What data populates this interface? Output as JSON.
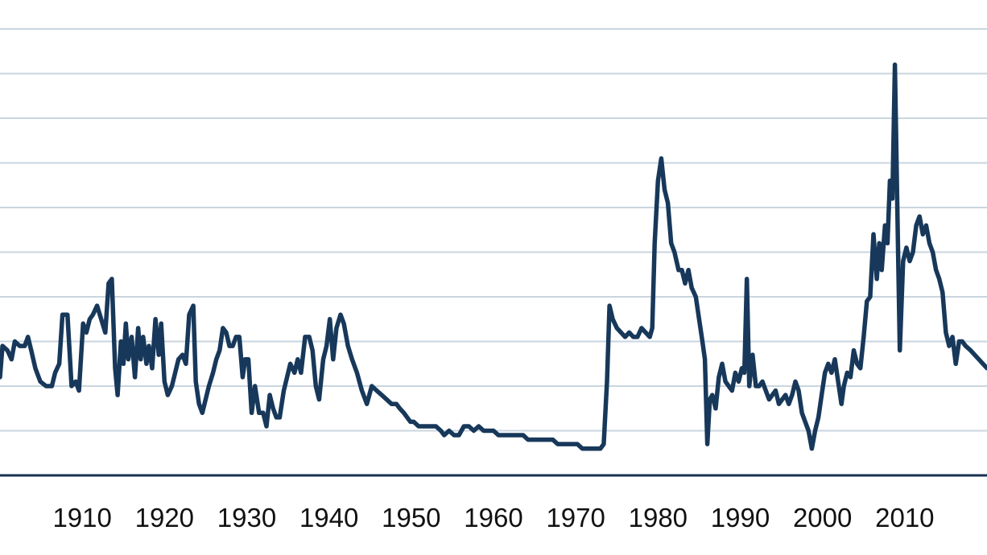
{
  "chart_data": {
    "type": "line",
    "title": "",
    "xlabel": "",
    "ylabel": "",
    "grid": true,
    "legend": "none",
    "colors": {
      "line": "#17385a",
      "grid": "#c9d6df",
      "axis": "#17324f",
      "text": "#111111"
    },
    "xlim": [
      1900,
      2020
    ],
    "ylim": [
      0,
      10
    ],
    "yticks": [
      0,
      1,
      2,
      3,
      4,
      5,
      6,
      7,
      8,
      9,
      10
    ],
    "xticks": [
      1910,
      1920,
      1930,
      1940,
      1950,
      1960,
      1970,
      1980,
      1990,
      2000,
      2010
    ],
    "xtick_labels": [
      "1910",
      "1920",
      "1930",
      "1940",
      "1950",
      "1960",
      "1970",
      "1980",
      "1990",
      "2000",
      "2010"
    ],
    "series": [
      {
        "values": [
          [
            1900.0,
            2.2
          ],
          [
            1900.3,
            2.9
          ],
          [
            1900.9,
            2.8
          ],
          [
            1901.4,
            2.6
          ],
          [
            1901.8,
            3.0
          ],
          [
            1902.4,
            2.9
          ],
          [
            1903.0,
            2.9
          ],
          [
            1903.4,
            3.1
          ],
          [
            1903.8,
            2.8
          ],
          [
            1904.3,
            2.4
          ],
          [
            1904.9,
            2.1
          ],
          [
            1905.6,
            2.0
          ],
          [
            1906.3,
            2.0
          ],
          [
            1906.7,
            2.3
          ],
          [
            1907.2,
            2.5
          ],
          [
            1907.6,
            3.6
          ],
          [
            1908.2,
            3.6
          ],
          [
            1908.7,
            2.0
          ],
          [
            1909.2,
            2.1
          ],
          [
            1909.6,
            1.9
          ],
          [
            1910.1,
            3.4
          ],
          [
            1910.5,
            3.2
          ],
          [
            1910.9,
            3.5
          ],
          [
            1911.3,
            3.6
          ],
          [
            1911.8,
            3.8
          ],
          [
            1912.3,
            3.5
          ],
          [
            1912.8,
            3.2
          ],
          [
            1913.2,
            4.3
          ],
          [
            1913.6,
            4.4
          ],
          [
            1914.0,
            2.4
          ],
          [
            1914.3,
            1.8
          ],
          [
            1914.7,
            3.0
          ],
          [
            1915.0,
            2.5
          ],
          [
            1915.3,
            3.4
          ],
          [
            1915.6,
            2.6
          ],
          [
            1916.0,
            3.1
          ],
          [
            1916.4,
            2.2
          ],
          [
            1916.8,
            3.3
          ],
          [
            1917.1,
            2.6
          ],
          [
            1917.4,
            3.1
          ],
          [
            1917.8,
            2.5
          ],
          [
            1918.1,
            2.9
          ],
          [
            1918.5,
            2.4
          ],
          [
            1918.9,
            3.5
          ],
          [
            1919.3,
            2.7
          ],
          [
            1919.6,
            3.4
          ],
          [
            1920.0,
            2.1
          ],
          [
            1920.4,
            1.8
          ],
          [
            1920.9,
            2.0
          ],
          [
            1921.3,
            2.3
          ],
          [
            1921.7,
            2.6
          ],
          [
            1922.2,
            2.7
          ],
          [
            1922.6,
            2.5
          ],
          [
            1923.0,
            3.6
          ],
          [
            1923.5,
            3.8
          ],
          [
            1923.8,
            2.1
          ],
          [
            1924.2,
            1.6
          ],
          [
            1924.6,
            1.4
          ],
          [
            1925.0,
            1.7
          ],
          [
            1925.4,
            2.0
          ],
          [
            1925.9,
            2.3
          ],
          [
            1926.3,
            2.6
          ],
          [
            1926.7,
            2.8
          ],
          [
            1927.1,
            3.3
          ],
          [
            1927.5,
            3.2
          ],
          [
            1927.9,
            2.9
          ],
          [
            1928.3,
            2.9
          ],
          [
            1928.7,
            3.1
          ],
          [
            1929.1,
            3.1
          ],
          [
            1929.5,
            2.2
          ],
          [
            1929.8,
            2.6
          ],
          [
            1930.2,
            2.6
          ],
          [
            1930.6,
            1.4
          ],
          [
            1931.0,
            2.0
          ],
          [
            1931.5,
            1.4
          ],
          [
            1932.0,
            1.4
          ],
          [
            1932.4,
            1.1
          ],
          [
            1932.8,
            1.8
          ],
          [
            1933.2,
            1.5
          ],
          [
            1933.6,
            1.3
          ],
          [
            1934.0,
            1.3
          ],
          [
            1934.5,
            1.9
          ],
          [
            1934.9,
            2.2
          ],
          [
            1935.3,
            2.5
          ],
          [
            1935.8,
            2.3
          ],
          [
            1936.2,
            2.6
          ],
          [
            1936.6,
            2.3
          ],
          [
            1937.1,
            3.1
          ],
          [
            1937.6,
            3.1
          ],
          [
            1938.0,
            2.8
          ],
          [
            1938.4,
            2.0
          ],
          [
            1938.8,
            1.7
          ],
          [
            1939.3,
            2.6
          ],
          [
            1939.7,
            2.9
          ],
          [
            1940.1,
            3.5
          ],
          [
            1940.5,
            2.6
          ],
          [
            1940.9,
            3.3
          ],
          [
            1941.4,
            3.6
          ],
          [
            1941.8,
            3.4
          ],
          [
            1942.3,
            2.9
          ],
          [
            1942.8,
            2.6
          ],
          [
            1943.4,
            2.3
          ],
          [
            1944.0,
            1.9
          ],
          [
            1944.6,
            1.6
          ],
          [
            1945.2,
            2.0
          ],
          [
            1945.8,
            1.9
          ],
          [
            1946.4,
            1.8
          ],
          [
            1947.0,
            1.7
          ],
          [
            1947.6,
            1.6
          ],
          [
            1948.2,
            1.6
          ],
          [
            1948.6,
            1.5
          ],
          [
            1949.1,
            1.4
          ],
          [
            1949.5,
            1.3
          ],
          [
            1949.9,
            1.2
          ],
          [
            1950.3,
            1.2
          ],
          [
            1950.9,
            1.1
          ],
          [
            1951.6,
            1.1
          ],
          [
            1952.3,
            1.1
          ],
          [
            1953.0,
            1.1
          ],
          [
            1953.6,
            1.0
          ],
          [
            1954.0,
            0.9
          ],
          [
            1954.6,
            1.0
          ],
          [
            1955.2,
            0.9
          ],
          [
            1955.8,
            0.9
          ],
          [
            1956.4,
            1.1
          ],
          [
            1957.0,
            1.1
          ],
          [
            1957.6,
            1.0
          ],
          [
            1958.2,
            1.1
          ],
          [
            1958.8,
            1.0
          ],
          [
            1959.4,
            1.0
          ],
          [
            1960.0,
            1.0
          ],
          [
            1960.6,
            0.9
          ],
          [
            1961.2,
            0.9
          ],
          [
            1961.8,
            0.9
          ],
          [
            1962.4,
            0.9
          ],
          [
            1963.0,
            0.9
          ],
          [
            1963.6,
            0.9
          ],
          [
            1964.2,
            0.8
          ],
          [
            1964.8,
            0.8
          ],
          [
            1965.4,
            0.8
          ],
          [
            1966.0,
            0.8
          ],
          [
            1966.6,
            0.8
          ],
          [
            1967.2,
            0.8
          ],
          [
            1967.8,
            0.7
          ],
          [
            1968.4,
            0.7
          ],
          [
            1969.0,
            0.7
          ],
          [
            1969.6,
            0.7
          ],
          [
            1970.2,
            0.7
          ],
          [
            1970.8,
            0.6
          ],
          [
            1971.4,
            0.6
          ],
          [
            1972.0,
            0.6
          ],
          [
            1972.5,
            0.6
          ],
          [
            1973.0,
            0.6
          ],
          [
            1973.4,
            0.7
          ],
          [
            1973.8,
            2.1
          ],
          [
            1974.1,
            3.8
          ],
          [
            1974.5,
            3.5
          ],
          [
            1975.0,
            3.3
          ],
          [
            1975.5,
            3.2
          ],
          [
            1976.0,
            3.1
          ],
          [
            1976.5,
            3.2
          ],
          [
            1977.0,
            3.1
          ],
          [
            1977.5,
            3.1
          ],
          [
            1978.0,
            3.3
          ],
          [
            1978.5,
            3.2
          ],
          [
            1979.0,
            3.1
          ],
          [
            1979.3,
            3.3
          ],
          [
            1979.6,
            5.2
          ],
          [
            1980.0,
            6.6
          ],
          [
            1980.4,
            7.1
          ],
          [
            1980.8,
            6.4
          ],
          [
            1981.2,
            6.1
          ],
          [
            1981.6,
            5.2
          ],
          [
            1982.0,
            5.0
          ],
          [
            1982.5,
            4.6
          ],
          [
            1982.9,
            4.6
          ],
          [
            1983.3,
            4.3
          ],
          [
            1983.7,
            4.6
          ],
          [
            1984.1,
            4.2
          ],
          [
            1984.6,
            4.0
          ],
          [
            1985.0,
            3.5
          ],
          [
            1985.4,
            3.0
          ],
          [
            1985.7,
            2.6
          ],
          [
            1986.0,
            0.7
          ],
          [
            1986.3,
            1.7
          ],
          [
            1986.6,
            1.8
          ],
          [
            1987.0,
            1.5
          ],
          [
            1987.4,
            2.2
          ],
          [
            1987.8,
            2.5
          ],
          [
            1988.2,
            2.1
          ],
          [
            1988.6,
            2.0
          ],
          [
            1989.0,
            1.9
          ],
          [
            1989.4,
            2.3
          ],
          [
            1989.8,
            2.1
          ],
          [
            1990.2,
            2.4
          ],
          [
            1990.5,
            2.3
          ],
          [
            1990.8,
            4.4
          ],
          [
            1991.1,
            2.0
          ],
          [
            1991.5,
            2.7
          ],
          [
            1991.9,
            2.0
          ],
          [
            1992.3,
            2.0
          ],
          [
            1992.7,
            2.1
          ],
          [
            1993.1,
            1.9
          ],
          [
            1993.5,
            1.7
          ],
          [
            1993.9,
            1.8
          ],
          [
            1994.3,
            1.9
          ],
          [
            1994.7,
            1.6
          ],
          [
            1995.1,
            1.7
          ],
          [
            1995.5,
            1.8
          ],
          [
            1995.9,
            1.6
          ],
          [
            1996.3,
            1.8
          ],
          [
            1996.7,
            2.1
          ],
          [
            1997.1,
            1.9
          ],
          [
            1997.5,
            1.4
          ],
          [
            1997.9,
            1.2
          ],
          [
            1998.3,
            1.0
          ],
          [
            1998.7,
            0.6
          ],
          [
            1999.1,
            1.0
          ],
          [
            1999.5,
            1.3
          ],
          [
            1999.9,
            1.8
          ],
          [
            2000.3,
            2.3
          ],
          [
            2000.7,
            2.5
          ],
          [
            2001.1,
            2.3
          ],
          [
            2001.5,
            2.6
          ],
          [
            2001.9,
            2.1
          ],
          [
            2002.3,
            1.6
          ],
          [
            2002.6,
            2.0
          ],
          [
            2003.0,
            2.3
          ],
          [
            2003.4,
            2.2
          ],
          [
            2003.8,
            2.8
          ],
          [
            2004.2,
            2.5
          ],
          [
            2004.6,
            2.4
          ],
          [
            2005.0,
            3.1
          ],
          [
            2005.4,
            3.9
          ],
          [
            2005.8,
            4.0
          ],
          [
            2006.2,
            5.4
          ],
          [
            2006.6,
            4.4
          ],
          [
            2006.9,
            5.2
          ],
          [
            2007.2,
            4.6
          ],
          [
            2007.6,
            5.6
          ],
          [
            2007.9,
            5.2
          ],
          [
            2008.2,
            6.6
          ],
          [
            2008.5,
            6.2
          ],
          [
            2008.8,
            9.2
          ],
          [
            2009.1,
            6.0
          ],
          [
            2009.4,
            2.8
          ],
          [
            2009.8,
            4.8
          ],
          [
            2010.2,
            5.1
          ],
          [
            2010.6,
            4.8
          ],
          [
            2011.0,
            5.0
          ],
          [
            2011.4,
            5.6
          ],
          [
            2011.8,
            5.8
          ],
          [
            2012.2,
            5.4
          ],
          [
            2012.6,
            5.6
          ],
          [
            2013.0,
            5.2
          ],
          [
            2013.4,
            5.0
          ],
          [
            2013.8,
            4.6
          ],
          [
            2014.2,
            4.4
          ],
          [
            2014.6,
            4.1
          ],
          [
            2015.0,
            3.2
          ],
          [
            2015.4,
            2.9
          ],
          [
            2015.8,
            3.1
          ],
          [
            2016.2,
            2.5
          ],
          [
            2016.6,
            3.0
          ],
          [
            2017.0,
            3.0
          ],
          [
            2017.4,
            2.9
          ],
          [
            2018.0,
            2.8
          ],
          [
            2019.0,
            2.6
          ],
          [
            2020.0,
            2.4
          ]
        ]
      }
    ]
  }
}
